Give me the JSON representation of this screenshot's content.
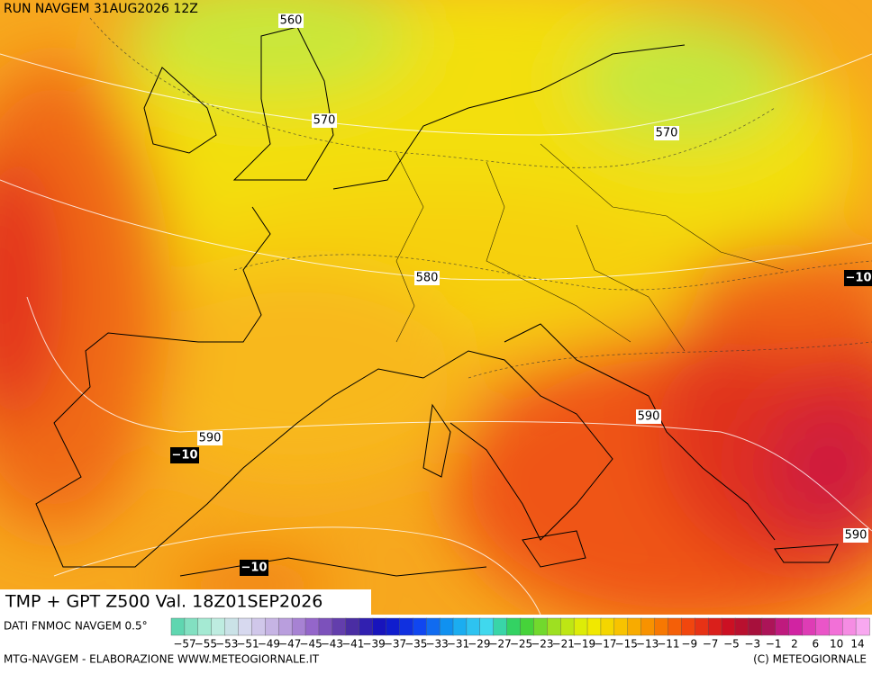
{
  "header": {
    "run": "RUN NAVGEM 31AUG2026 12Z"
  },
  "map": {
    "contour_labels": [
      "560",
      "570",
      "570",
      "580",
      "590",
      "590",
      "590"
    ],
    "temperature_labels": [
      "−10",
      "−10",
      "−10"
    ]
  },
  "title": "TMP + GPT Z500 Val. 18Z01SEP2026",
  "legend": {
    "source": "DATI FNMOC NAVGEM 0.5°",
    "labels": [
      "−57",
      "−55",
      "−53",
      "−51",
      "−49",
      "−47",
      "−45",
      "−43",
      "−41",
      "−39",
      "−37",
      "−35",
      "−33",
      "−31",
      "−29",
      "−27",
      "−25",
      "−23",
      "−21",
      "−19",
      "−17",
      "−15",
      "−13",
      "−11",
      "−9",
      "−7",
      "−5",
      "−3",
      "−1",
      "2",
      "6",
      "10",
      "14"
    ]
  },
  "footer": {
    "left": "MTG-NAVGEM - ELABORAZIONE WWW.METEOGIORNALE.IT",
    "right": "(C) METEOGIORNALE"
  }
}
